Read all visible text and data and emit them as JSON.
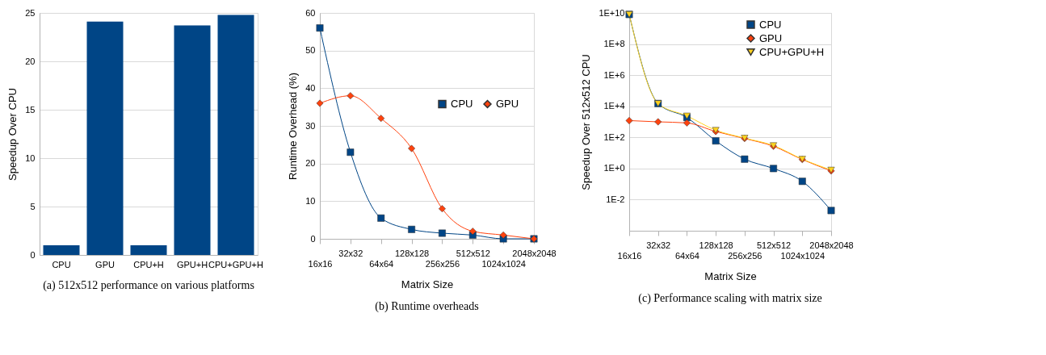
{
  "chart_data": [
    {
      "type": "bar",
      "title": "(a)  512x512 performance on various platforms",
      "ylabel": "Speedup Over CPU",
      "categories": [
        "CPU",
        "GPU",
        "CPU+H",
        "GPU+H",
        "CPU+GPU+H"
      ],
      "values": [
        1,
        24.1,
        1,
        23.7,
        24.8
      ],
      "color": "#004586",
      "ylim": [
        0,
        25
      ],
      "yticks": [
        0,
        5,
        10,
        15,
        20,
        25
      ],
      "grid": "y"
    },
    {
      "type": "line",
      "title": "(b)  Runtime overheads",
      "xlabel": "Matrix Size",
      "ylabel": "Runtime Overhead (%)",
      "categories": [
        "16x16",
        "32x32",
        "64x64",
        "128x128",
        "256x256",
        "512x512",
        "1024x1024",
        "2048x2048"
      ],
      "series": [
        {
          "name": "CPU",
          "color": "#004586",
          "marker": "square",
          "values": [
            56,
            23,
            5.5,
            2.5,
            1.5,
            1,
            0,
            0
          ]
        },
        {
          "name": "GPU",
          "color": "#ff420e",
          "marker": "diamond",
          "values": [
            36,
            38,
            32,
            24,
            8,
            2,
            1,
            0
          ]
        }
      ],
      "ylim": [
        0,
        60
      ],
      "yticks": [
        0,
        10,
        20,
        30,
        40,
        50,
        60
      ],
      "grid": "y",
      "legend": "right"
    },
    {
      "type": "line",
      "title": "(c)  Performance scaling with matrix size",
      "xlabel": "Matrix Size",
      "ylabel": "Speedup Over 512x512 CPU",
      "categories": [
        "16x16",
        "32x32",
        "64x64",
        "128x128",
        "256x256",
        "512x512",
        "1024x1024",
        "2048x2048"
      ],
      "series": [
        {
          "name": "CPU",
          "color": "#004586",
          "marker": "square",
          "values": [
            8000000000,
            15000,
            1900,
            60,
            4,
            1,
            0.15,
            0.002
          ]
        },
        {
          "name": "GPU",
          "color": "#ff420e",
          "marker": "diamond",
          "values": [
            1200,
            1000,
            850,
            240,
            85,
            27,
            3.8,
            0.7
          ]
        },
        {
          "name": "CPU+GPU+H",
          "color": "#ffd320",
          "marker": "triangle",
          "values": [
            8000000000,
            15000,
            2400,
            290,
            90,
            30,
            4,
            0.8
          ]
        }
      ],
      "log": true,
      "ylim": [
        0.0001,
        10000000000
      ],
      "yticks": [
        {
          "value": 0.01,
          "label": "1E-2"
        },
        {
          "value": 1,
          "label": "1E+0"
        },
        {
          "value": 100,
          "label": "1E+2"
        },
        {
          "value": 10000,
          "label": "1E+4"
        },
        {
          "value": 1000000,
          "label": "1E+6"
        },
        {
          "value": 100000000,
          "label": "1E+8"
        },
        {
          "value": 10000000000,
          "label": "1E+10"
        }
      ],
      "grid": "y",
      "legend": "top right"
    }
  ]
}
